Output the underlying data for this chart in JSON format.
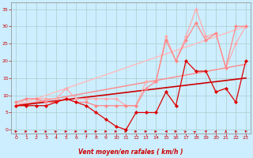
{
  "xlabel": "Vent moyen/en rafales ( km/h )",
  "background_color": "#cceeff",
  "grid_color": "#aacccc",
  "xlim": [
    -0.5,
    23.5
  ],
  "ylim": [
    -1,
    37
  ],
  "yticks": [
    0,
    5,
    10,
    15,
    20,
    25,
    30,
    35
  ],
  "xticks": [
    0,
    1,
    2,
    3,
    4,
    5,
    6,
    7,
    8,
    9,
    10,
    11,
    12,
    13,
    14,
    15,
    16,
    17,
    18,
    19,
    20,
    21,
    22,
    23
  ],
  "series": [
    {
      "x": [
        0,
        23
      ],
      "y": [
        7,
        30
      ],
      "color": "#ffbbbb",
      "linewidth": 1.0,
      "marker": null,
      "alpha": 1.0,
      "linestyle": "-",
      "zorder": 2
    },
    {
      "x": [
        0,
        23
      ],
      "y": [
        7,
        19
      ],
      "color": "#ff8888",
      "linewidth": 1.0,
      "marker": null,
      "alpha": 1.0,
      "linestyle": "-",
      "zorder": 2
    },
    {
      "x": [
        0,
        23
      ],
      "y": [
        7,
        15
      ],
      "color": "#cc0000",
      "linewidth": 1.2,
      "marker": null,
      "alpha": 1.0,
      "linestyle": "-",
      "zorder": 2
    },
    {
      "x": [
        0,
        1,
        2,
        3,
        4,
        5,
        6,
        7,
        8,
        9,
        10,
        11,
        12,
        13,
        14,
        15,
        16,
        17,
        18,
        19,
        20,
        21,
        22,
        23
      ],
      "y": [
        7,
        9,
        9,
        9,
        9,
        12,
        9,
        9,
        9,
        9,
        9,
        7,
        7,
        14,
        14,
        27,
        20,
        27,
        35,
        27,
        28,
        18,
        25,
        30
      ],
      "color": "#ffaaaa",
      "linewidth": 0.9,
      "marker": "D",
      "markersize": 2.0,
      "alpha": 1.0,
      "linestyle": "-",
      "zorder": 3
    },
    {
      "x": [
        0,
        1,
        2,
        3,
        4,
        5,
        6,
        7,
        8,
        9,
        10,
        11,
        12,
        13,
        14,
        15,
        16,
        17,
        18,
        19,
        20,
        21,
        22,
        23
      ],
      "y": [
        8,
        9,
        9,
        8,
        8,
        9,
        8,
        8,
        7,
        7,
        7,
        7,
        7,
        12,
        14,
        26,
        20,
        26,
        31,
        26,
        28,
        18,
        30,
        30
      ],
      "color": "#ff8888",
      "linewidth": 0.9,
      "marker": "D",
      "markersize": 2.0,
      "alpha": 1.0,
      "linestyle": "-",
      "zorder": 3
    },
    {
      "x": [
        0,
        1,
        2,
        3,
        4,
        5,
        6,
        7,
        8,
        9,
        10,
        11,
        12,
        13,
        14,
        15,
        16,
        17,
        18,
        19,
        20,
        21,
        22,
        23
      ],
      "y": [
        7,
        7,
        7,
        7,
        8,
        9,
        8,
        7,
        5,
        3,
        1,
        0,
        5,
        5,
        5,
        11,
        7,
        20,
        17,
        17,
        11,
        12,
        8,
        20
      ],
      "color": "#dd0000",
      "linewidth": 0.9,
      "marker": "D",
      "markersize": 2.0,
      "alpha": 1.0,
      "linestyle": "-",
      "zorder": 4
    }
  ],
  "tick_color": "#cc0000",
  "label_color": "#cc0000",
  "axis_color": "#888888",
  "arrow_color": "#cc0000",
  "wind_dirs": [
    90,
    80,
    80,
    70,
    70,
    80,
    90,
    90,
    90,
    90,
    90,
    90,
    90,
    90,
    90,
    270,
    90,
    60,
    40,
    20,
    10,
    0,
    350,
    340
  ]
}
